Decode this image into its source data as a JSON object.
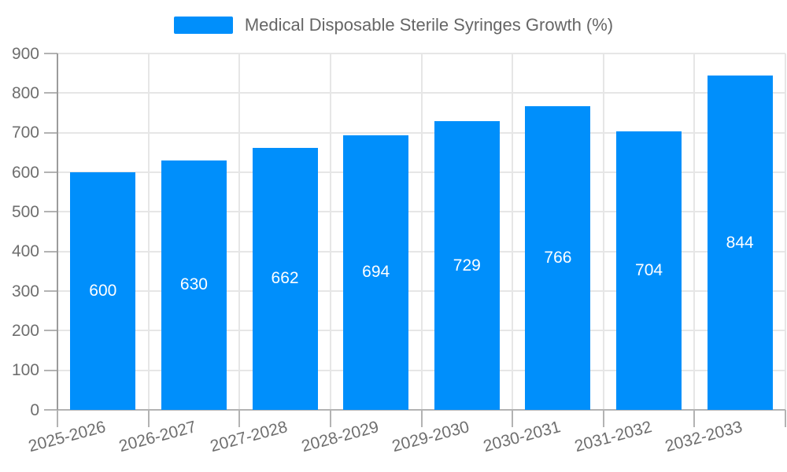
{
  "legend": {
    "label": "Medical Disposable Sterile Syringes Growth (%)",
    "swatch_color": "#008FFB"
  },
  "chart_data": {
    "type": "bar",
    "title": "Medical Disposable Sterile Syringes Growth (%)",
    "series_name": "Medical Disposable Sterile Syringes Growth (%)",
    "categories": [
      "2025-2026",
      "2026-2027",
      "2027-2028",
      "2028-2029",
      "2029-2030",
      "2030-2031",
      "2031-2032",
      "2032-2033"
    ],
    "values": [
      600,
      630,
      662,
      694,
      729,
      766,
      704,
      844
    ],
    "value_labels": [
      "600",
      "630",
      "662",
      "694",
      "729",
      "766",
      "704",
      "844"
    ],
    "yticks": [
      0,
      100,
      200,
      300,
      400,
      500,
      600,
      700,
      800,
      900
    ],
    "ylim": [
      0,
      900
    ],
    "xlabel": "",
    "ylabel": "",
    "grid": true,
    "legend_position": "top",
    "bar_color": "#008FFB",
    "value_label_color": "#FFFFFF",
    "axis_text_color": "#6e6e6e"
  }
}
